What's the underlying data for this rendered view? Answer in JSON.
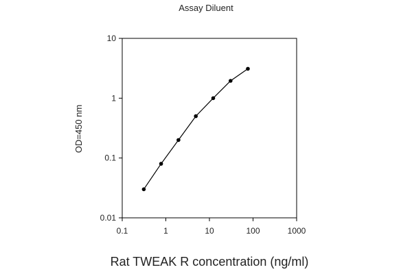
{
  "chart_data": {
    "type": "line",
    "title": "Assay Diluent",
    "xlabel": "Rat TWEAK R concentration (ng/ml)",
    "ylabel": "OD=450 nm",
    "xscale": "log",
    "yscale": "log",
    "xlim": [
      0.1,
      1000
    ],
    "ylim": [
      0.01,
      10
    ],
    "xticks": [
      "0.1",
      "1",
      "10",
      "100",
      "1000"
    ],
    "yticks": [
      "0.01",
      "0.1",
      "1",
      "10"
    ],
    "grid": false,
    "legend": "none",
    "series": [
      {
        "x": [
          0.3125,
          0.78,
          1.95,
          4.88,
          12.2,
          30.5,
          76.3
        ],
        "y": [
          0.03,
          0.08,
          0.2,
          0.5,
          1.0,
          1.95,
          3.1
        ],
        "color": "#000000"
      }
    ]
  }
}
